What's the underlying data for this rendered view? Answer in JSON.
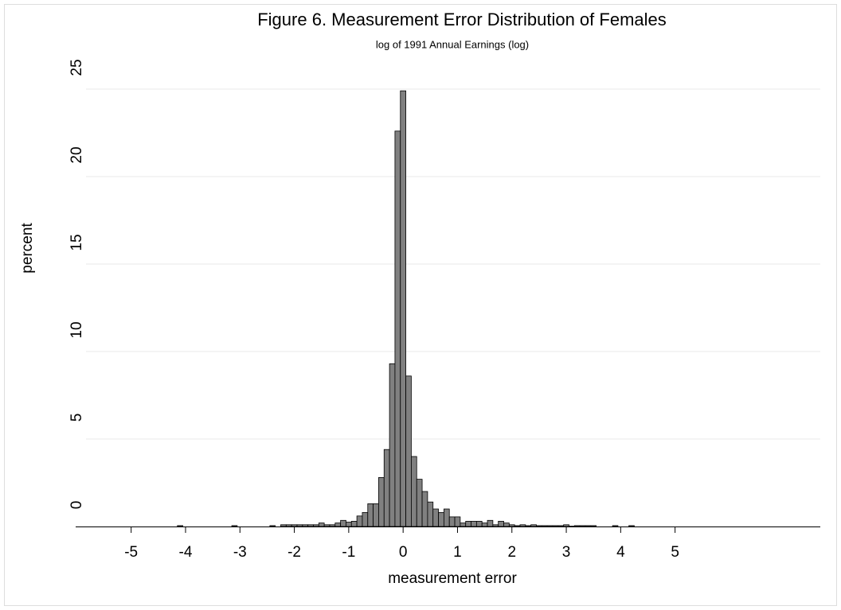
{
  "chart_data": {
    "type": "histogram",
    "title": "Figure 6. Measurement Error Distribution of Females",
    "subtitle": "log of 1991 Annual Earnings (log)",
    "x_label": "measurement error",
    "y_label": "percent",
    "bins": [
      -4.15,
      -4.05,
      -3.95,
      -3.85,
      -3.75,
      -3.65,
      -3.55,
      -3.45,
      -3.35,
      -3.25,
      -3.15,
      -3.05,
      -2.95,
      -2.85,
      -2.75,
      -2.65,
      -2.55,
      -2.45,
      -2.35,
      -2.25,
      -2.15,
      -2.05,
      -1.95,
      -1.85,
      -1.75,
      -1.65,
      -1.55,
      -1.45,
      -1.35,
      -1.25,
      -1.15,
      -1.05,
      -0.95,
      -0.85,
      -0.75,
      -0.65,
      -0.55,
      -0.45,
      -0.35,
      -0.25,
      -0.15,
      -0.05,
      0.05,
      0.15,
      0.25,
      0.35,
      0.45,
      0.55,
      0.65,
      0.75,
      0.85,
      0.95,
      1.05,
      1.15,
      1.25,
      1.35,
      1.45,
      1.55,
      1.65,
      1.75,
      1.85,
      1.95,
      2.05,
      2.15,
      2.25,
      2.35,
      2.45,
      2.55,
      2.65,
      2.75,
      2.85,
      2.95,
      3.05,
      3.15,
      3.25,
      3.35,
      3.45,
      3.55,
      3.65,
      3.75,
      3.85,
      3.95,
      4.05,
      4.15,
      4.25
    ],
    "values": [
      0.05,
      0,
      0,
      0,
      0,
      0,
      0,
      0,
      0,
      0,
      0.05,
      0,
      0,
      0,
      0,
      0,
      0,
      0.05,
      0,
      0.1,
      0.1,
      0.1,
      0.1,
      0.1,
      0.1,
      0.1,
      0.2,
      0.1,
      0.1,
      0.2,
      0.35,
      0.25,
      0.3,
      0.6,
      0.8,
      1.3,
      1.3,
      2.8,
      4.4,
      9.3,
      22.6,
      24.9,
      8.6,
      4.0,
      2.7,
      2.0,
      1.4,
      1.0,
      0.8,
      1.0,
      0.55,
      0.55,
      0.2,
      0.3,
      0.3,
      0.3,
      0.2,
      0.35,
      0.1,
      0.3,
      0.2,
      0.1,
      0.05,
      0.1,
      0.05,
      0.1,
      0.05,
      0.05,
      0.05,
      0.05,
      0.05,
      0.1,
      0.02,
      0.05,
      0.05,
      0.05,
      0.05,
      0,
      0,
      0,
      0.05,
      0,
      0,
      0.05
    ],
    "color": "#808080",
    "xlim": [
      -5.83,
      7.67
    ],
    "ylim": [
      0,
      25
    ],
    "xticks": [
      -5,
      -4,
      -3,
      -2,
      -1,
      0,
      1,
      2,
      3,
      4,
      5
    ],
    "yticks": [
      0,
      5,
      10,
      15,
      20,
      25
    ],
    "grid": true
  }
}
